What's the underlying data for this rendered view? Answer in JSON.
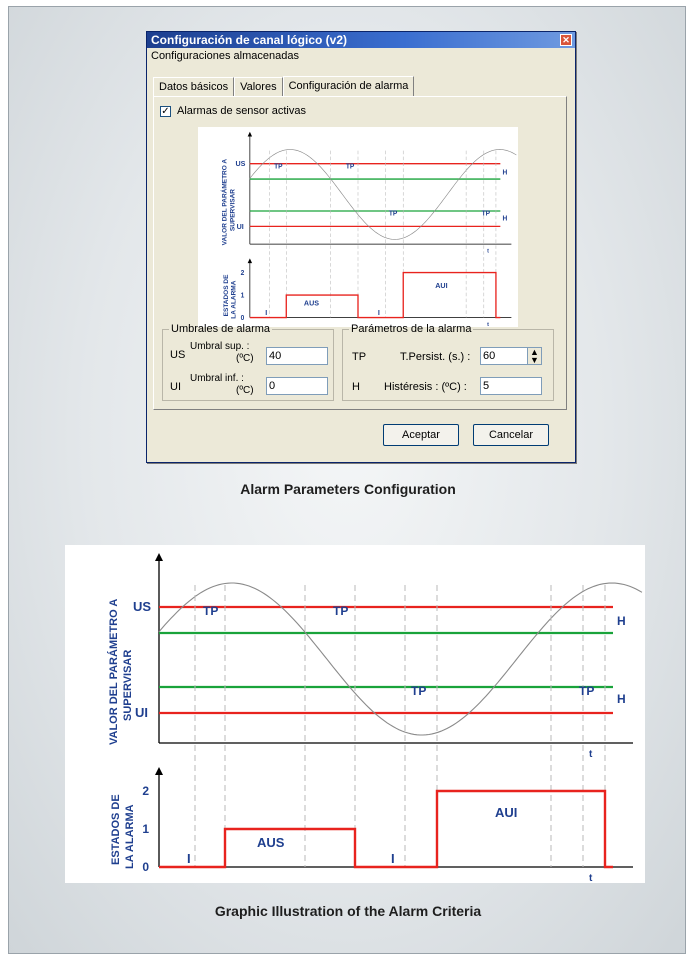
{
  "dialog": {
    "title": "Configuración de canal lógico (v2)",
    "close_glyph": "✕",
    "menu": "Configuraciones almacenadas",
    "tabs": [
      "Datos básicos",
      "Valores",
      "Configuración de alarma"
    ],
    "active_tab": 2,
    "checkbox_label": "Alarmas de sensor activas",
    "checkbox_checked": true,
    "checkbox_glyph": "✓",
    "thresholds_group": {
      "legend": "Umbrales de alarma",
      "us_code": "US",
      "us_label_1": "Umbral sup. :",
      "us_label_2": "(ºC)",
      "us_value": "40",
      "ui_code": "UI",
      "ui_label_1": "Umbral inf. :",
      "ui_label_2": "(ºC)",
      "ui_value": "0"
    },
    "params_group": {
      "legend": "Parámetros de la alarma",
      "tp_code": "TP",
      "tp_label": "T.Persist. (s.) :",
      "tp_value": "60",
      "h_code": "H",
      "h_label": "Histéresis : (ºC) :",
      "h_value": "5"
    },
    "accept": "Aceptar",
    "cancel": "Cancelar"
  },
  "caption_top": "Alarm Parameters Configuration",
  "caption_bottom": "Graphic Illustration of the Alarm Criteria",
  "colors": {
    "threshold": "#e8231e",
    "hysteresis": "#19a33a",
    "label": "#1f3f8f",
    "curve": "#8a8a8a"
  },
  "chart_text": {
    "ylabel_top_1": "VALOR DEL PARÁMETRO A",
    "ylabel_top_2": "SUPERVISAR",
    "ylabel_bottom_1": "ESTADOS DE",
    "ylabel_bottom_2": "LA ALARMA",
    "us": "US",
    "ui": "UI",
    "h": "H",
    "tp": "TP",
    "t": "t",
    "aus": "AUS",
    "aui": "AUI",
    "i": "I",
    "ticks": [
      "0",
      "1",
      "2"
    ]
  },
  "chart_data": {
    "type": "line",
    "description_free": true,
    "states": [
      {
        "label": "I",
        "value": 0
      },
      {
        "label": "AUS",
        "value": 1
      },
      {
        "label": "I",
        "value": 0
      },
      {
        "label": "AUI",
        "value": 2
      }
    ],
    "y_ticks": [
      0,
      1,
      2
    ]
  }
}
